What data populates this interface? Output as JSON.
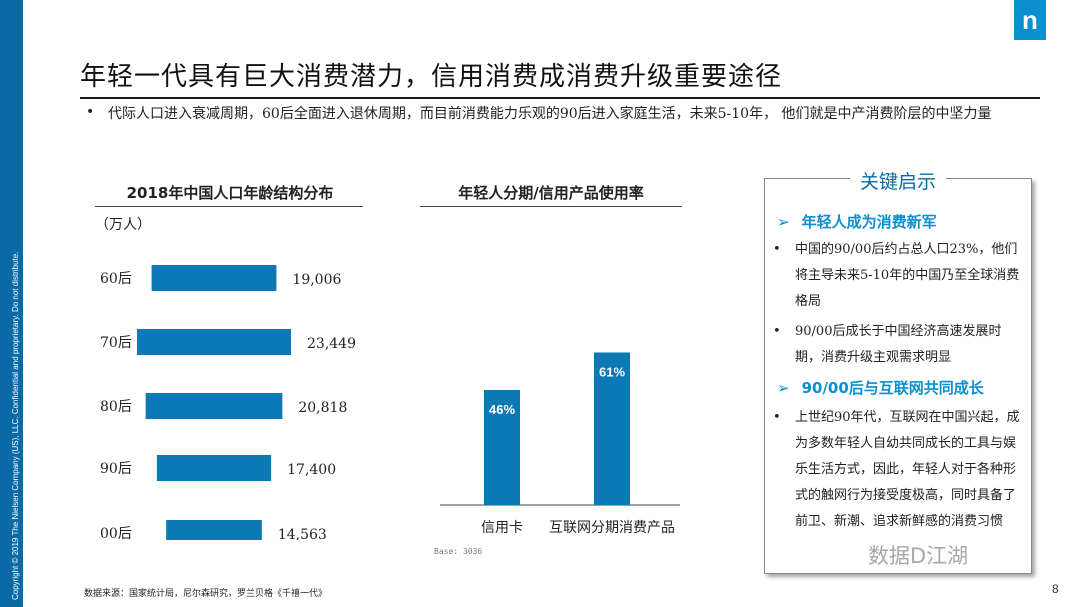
{
  "copyright": "Copyright © 2019 The Nielsen Company (US), LLC. Confidential and proprietary. Do not distribute.",
  "logo_letter": "n",
  "title": "年轻一代具有巨大消费潜力，信用消费成消费升级重要途径",
  "bullet": "代际人口进入衰减周期，60后全面进入退休周期，而目前消费能力乐观的90后进入家庭生活，未来5-10年，  他们就是中产消费阶层的中坚力量",
  "colors": {
    "brand": "#0a6aa6",
    "bar": "#0b79b5",
    "accent": "#0a8fd0"
  },
  "chart_data": [
    {
      "type": "bar",
      "orientation": "horizontal",
      "title": "2018年中国人口年龄结构分布",
      "unit": "（万人）",
      "categories": [
        "60后",
        "70后",
        "80后",
        "90后",
        "00后"
      ],
      "values": [
        19006,
        23449,
        20818,
        17400,
        14563
      ],
      "value_labels": [
        "19,006",
        "23,449",
        "20,818",
        "17,400",
        "14,563"
      ]
    },
    {
      "type": "bar",
      "title": "年轻人分期/信用产品使用率",
      "categories": [
        "信用卡",
        "互联网分期消费产品"
      ],
      "values": [
        46,
        61
      ],
      "value_labels": [
        "46%",
        "61%"
      ],
      "base_note": "Base:   3036",
      "ylim": [
        0,
        100
      ]
    }
  ],
  "insights": {
    "title": "关键启示",
    "sections": [
      {
        "heading": "年轻人成为消费新军",
        "items": [
          "中国的90/00后约占总人口23%，他们将主导未来5-10年的中国乃至全球消费格局",
          "90/00后成长于中国经济高速发展时期，消费升级主观需求明显"
        ]
      },
      {
        "heading": "90/00后与互联网共同成长",
        "items": [
          "上世纪90年代，互联网在中国兴起，成为多数年轻人自幼共同成长的工具与娱乐生活方式，因此，年轻人对于各种形式的触网行为接受度极高，同时具备了前卫、新潮、追求新鲜感的消费习惯"
        ]
      }
    ]
  },
  "source": "数据来源：国家统计局，尼尔森研究，罗兰贝格《千禧一代》",
  "page_number": "8",
  "watermark": "数据D江湖"
}
